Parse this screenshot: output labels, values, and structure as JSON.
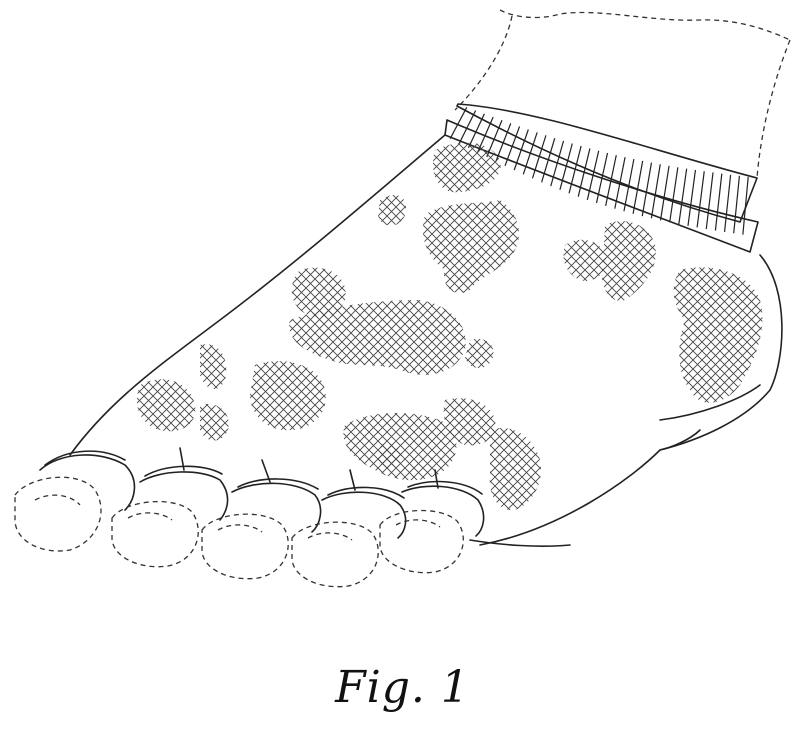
{
  "figure": {
    "caption": "Fig. 1",
    "colors": {
      "ink": "#222222",
      "paper": "#ffffff"
    }
  }
}
